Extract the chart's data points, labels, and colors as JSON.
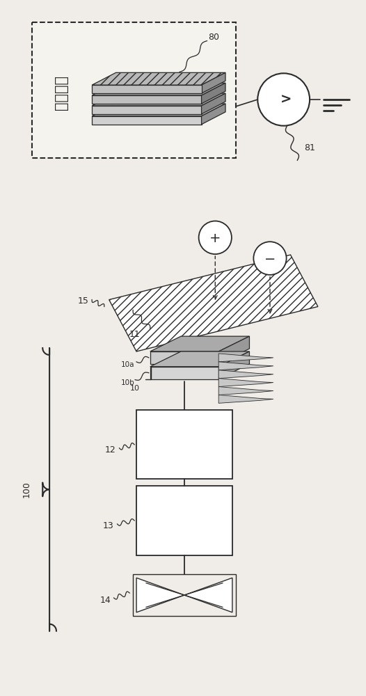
{
  "bg_color": "#f0ede8",
  "line_color": "#2a2a2a",
  "chinese_text": "被除电物",
  "label_80": "80",
  "label_81": "81",
  "label_15": "15",
  "label_11": "11",
  "label_10": "10",
  "label_10a": "10a",
  "label_10b": "10b",
  "label_12": "12",
  "label_13": "13",
  "label_14": "14",
  "label_100": "100"
}
